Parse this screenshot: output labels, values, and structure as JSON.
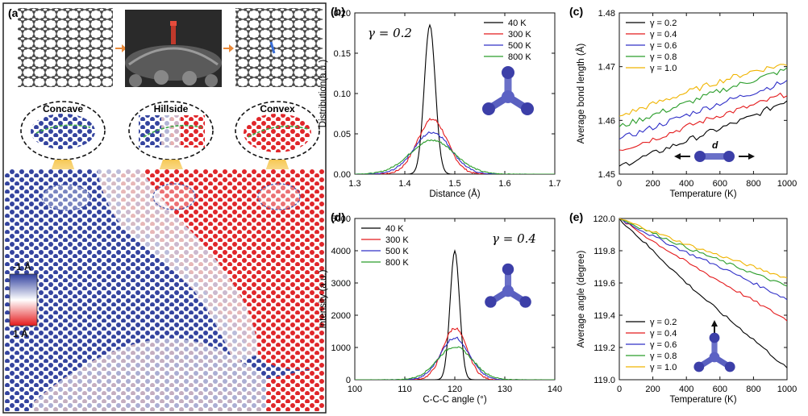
{
  "panel_a": {
    "label": "(a)",
    "insets": [
      "Concave",
      "Hillside",
      "Convex"
    ],
    "colorbar": {
      "top_label": "-1 Å",
      "bottom_label": "1 Å",
      "colors": [
        "#2f3f9e",
        "#ffffff",
        "#e41a1c"
      ]
    }
  },
  "colors": {
    "40 K": "#000000",
    "300 K": "#e41a1c",
    "500 K": "#3030c8",
    "800 K": "#2a9d2a",
    "γ = 0.2": "#000000",
    "γ = 0.4": "#e41a1c",
    "γ = 0.6": "#3030c8",
    "γ = 0.8": "#2a9d2a",
    "γ = 1.0": "#f0b400"
  },
  "chart_data": [
    {
      "id": "b",
      "label": "(b)",
      "type": "line",
      "annotation": "γ = 0.2",
      "xlabel": "Distance (Å)",
      "ylabel": "Distribution(a.u.)",
      "xlim": [
        1.3,
        1.7
      ],
      "ylim": [
        0,
        0.2
      ],
      "xticks": [
        "1.3",
        "1.4",
        "1.5",
        "1.6",
        "1.7"
      ],
      "yticks": [
        "0.00",
        "0.05",
        "0.10",
        "0.15",
        "0.20"
      ],
      "legend_position": "top-right",
      "series": [
        {
          "name": "40 K",
          "shape": "gaussian",
          "center": 1.45,
          "peak": 0.185,
          "width": 0.011
        },
        {
          "name": "300 K",
          "shape": "gaussian",
          "center": 1.455,
          "peak": 0.068,
          "width": 0.03
        },
        {
          "name": "500 K",
          "shape": "gaussian",
          "center": 1.455,
          "peak": 0.052,
          "width": 0.037
        },
        {
          "name": "800 K",
          "shape": "gaussian",
          "center": 1.455,
          "peak": 0.042,
          "width": 0.045
        }
      ]
    },
    {
      "id": "c",
      "label": "(c)",
      "type": "line",
      "xlabel": "Temperature (K)",
      "ylabel": "Average bond length (Å)",
      "xlim": [
        0,
        1000
      ],
      "ylim": [
        1.45,
        1.48
      ],
      "xticks": [
        "0",
        "200",
        "400",
        "600",
        "800",
        "1000"
      ],
      "yticks": [
        "1.45",
        "1.46",
        "1.47",
        "1.48"
      ],
      "legend_position": "top-left",
      "annotation": "d",
      "series": [
        {
          "name": "γ = 0.2",
          "x": [
            0,
            200,
            400,
            600,
            800,
            1000
          ],
          "y": [
            1.4515,
            1.4538,
            1.4562,
            1.4585,
            1.4608,
            1.4638
          ]
        },
        {
          "name": "γ = 0.4",
          "x": [
            0,
            200,
            400,
            600,
            800,
            1000
          ],
          "y": [
            1.4545,
            1.4565,
            1.4588,
            1.461,
            1.4628,
            1.465
          ]
        },
        {
          "name": "γ = 0.6",
          "x": [
            0,
            200,
            400,
            600,
            800,
            1000
          ],
          "y": [
            1.4565,
            1.4587,
            1.461,
            1.4632,
            1.4652,
            1.4673
          ]
        },
        {
          "name": "γ = 0.8",
          "x": [
            0,
            200,
            400,
            600,
            800,
            1000
          ],
          "y": [
            1.4588,
            1.461,
            1.4632,
            1.4655,
            1.4675,
            1.4695
          ]
        },
        {
          "name": "γ = 1.0",
          "x": [
            0,
            200,
            400,
            600,
            800,
            1000
          ],
          "y": [
            1.4608,
            1.463,
            1.4652,
            1.4673,
            1.4692,
            1.4705
          ]
        }
      ]
    },
    {
      "id": "d",
      "label": "(d)",
      "type": "line",
      "annotation": "γ = 0.4",
      "xlabel": "C-C-C angle (°)",
      "ylabel": "Intensity (a.u.)",
      "xlim": [
        100,
        140
      ],
      "ylim": [
        0,
        5000
      ],
      "xticks": [
        "100",
        "110",
        "120",
        "130",
        "140"
      ],
      "yticks": [
        "0",
        "1000",
        "2000",
        "3000",
        "4000",
        "5000"
      ],
      "legend_position": "top-left",
      "series": [
        {
          "name": "40 K",
          "shape": "gaussian",
          "center": 120,
          "peak": 4000,
          "width": 0.95
        },
        {
          "name": "300 K",
          "shape": "gaussian",
          "center": 120,
          "peak": 1600,
          "width": 2.4
        },
        {
          "name": "500 K",
          "shape": "gaussian",
          "center": 120,
          "peak": 1300,
          "width": 2.9
        },
        {
          "name": "800 K",
          "shape": "gaussian",
          "center": 120,
          "peak": 1020,
          "width": 3.5
        }
      ]
    },
    {
      "id": "e",
      "label": "(e)",
      "type": "line",
      "xlabel": "Temperature (K)",
      "ylabel": "Average angle (degree)",
      "xlim": [
        0,
        1000
      ],
      "ylim": [
        119.0,
        120.0
      ],
      "xticks": [
        "0",
        "200",
        "400",
        "600",
        "800",
        "1000"
      ],
      "yticks": [
        "119.0",
        "119.2",
        "119.4",
        "119.6",
        "119.8",
        "120.0"
      ],
      "legend_position": "bottom-left",
      "series": [
        {
          "name": "γ = 0.2",
          "x": [
            0,
            200,
            400,
            600,
            800,
            1000
          ],
          "y": [
            120.0,
            119.8,
            119.6,
            119.42,
            119.25,
            119.07
          ]
        },
        {
          "name": "γ = 0.4",
          "x": [
            0,
            200,
            400,
            600,
            800,
            1000
          ],
          "y": [
            120.0,
            119.86,
            119.73,
            119.61,
            119.49,
            119.37
          ]
        },
        {
          "name": "γ = 0.6",
          "x": [
            0,
            200,
            400,
            600,
            800,
            1000
          ],
          "y": [
            120.0,
            119.89,
            119.79,
            119.7,
            119.6,
            119.5
          ]
        },
        {
          "name": "γ = 0.8",
          "x": [
            0,
            200,
            400,
            600,
            800,
            1000
          ],
          "y": [
            120.0,
            119.91,
            119.82,
            119.74,
            119.66,
            119.58
          ]
        },
        {
          "name": "γ = 1.0",
          "x": [
            0,
            200,
            400,
            600,
            800,
            1000
          ],
          "y": [
            120.0,
            119.92,
            119.84,
            119.77,
            119.7,
            119.63
          ]
        }
      ]
    }
  ]
}
